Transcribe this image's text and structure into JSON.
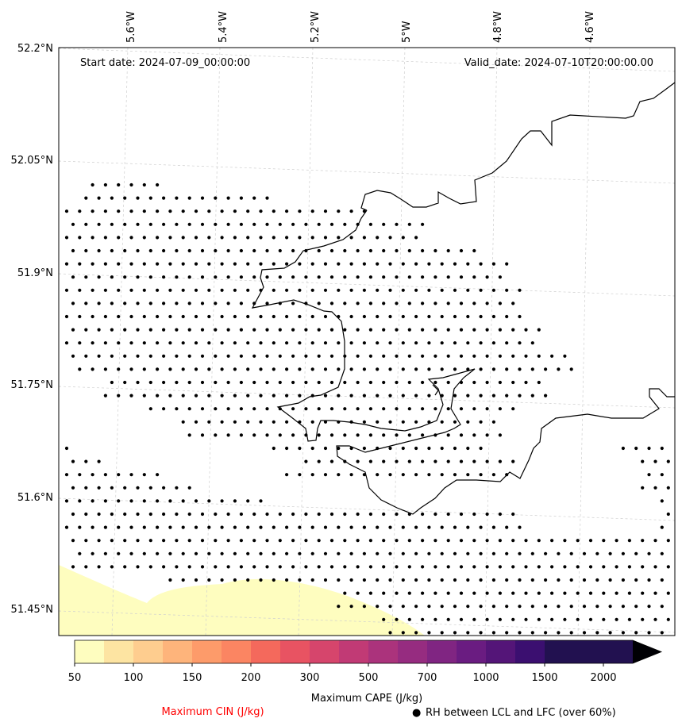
{
  "map": {
    "start_date": "Start date: 2024-07-09_00:00:00",
    "valid_date": "Valid_date: 2024-07-10T20:00:00.00",
    "lon_labels": [
      "5.6°W",
      "5.4°W",
      "5.2°W",
      "5°W",
      "4.8°W",
      "4.6°W"
    ],
    "lat_labels": [
      "52.2°N",
      "52.05°N",
      "51.9°N",
      "51.75°N",
      "51.6°N",
      "51.45°N"
    ]
  },
  "colorbar": {
    "label": "Maximum CAPE (J/kg)",
    "tick_labels": [
      "50",
      "100",
      "150",
      "200",
      "300",
      "500",
      "700",
      "1000",
      "1500",
      "2000"
    ],
    "colors": [
      "#fefdbf",
      "#fde4a2",
      "#fecd8f",
      "#feb47b",
      "#fd9b6a",
      "#fb8562",
      "#f4695c",
      "#e85362",
      "#d6456c",
      "#c13a75",
      "#ab337c",
      "#962c80",
      "#802582",
      "#6a1c81",
      "#541578",
      "#3b0f70",
      "#221150",
      "#000004"
    ]
  },
  "legend": {
    "cin_label": "Maximum CIN (J/kg)",
    "rh_label": "RH between LCL and LFC (over 60%)",
    "rh_marker": "●",
    "cin_color": "#ff0000"
  }
}
